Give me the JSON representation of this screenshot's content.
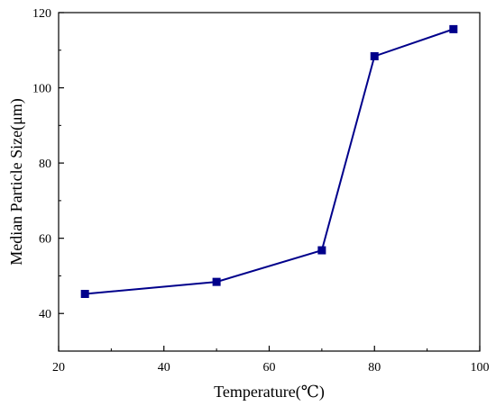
{
  "chart_data": {
    "type": "line",
    "title": "",
    "xlabel": "Temperature(℃)",
    "ylabel": "Median Particle Size(μm)",
    "xlim": [
      20,
      100
    ],
    "ylim": [
      30,
      120
    ],
    "x_ticks": [
      20,
      40,
      60,
      80,
      100
    ],
    "y_ticks": [
      40,
      60,
      80,
      100,
      120
    ],
    "grid": false,
    "legend": "none",
    "series": [
      {
        "x": [
          25,
          50,
          70,
          80,
          95
        ],
        "y": [
          45.2,
          48.4,
          56.8,
          108.4,
          115.6
        ],
        "color": "#00008B",
        "marker": "square"
      }
    ]
  }
}
